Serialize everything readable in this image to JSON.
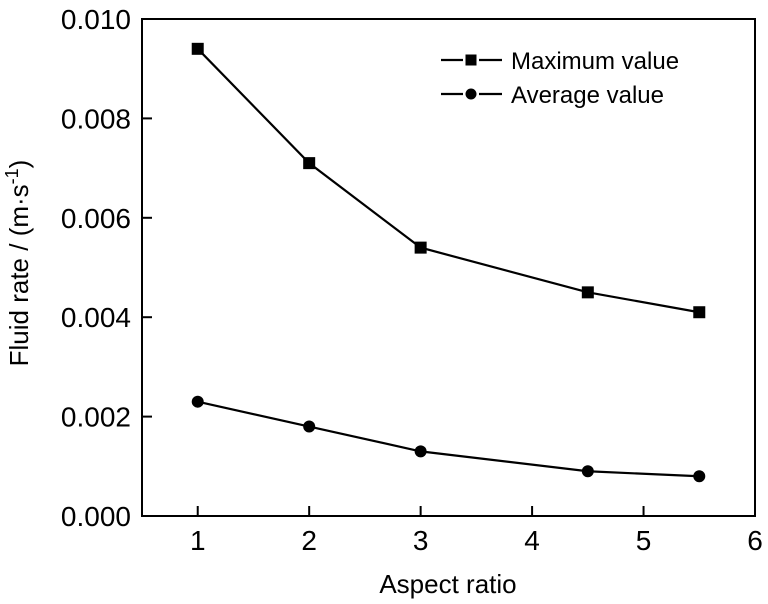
{
  "chart_data": {
    "type": "line",
    "title": "",
    "xlabel": "Aspect ratio",
    "ylabel": "Fluid rate / (m·s⁻¹)",
    "ylabel_parts": {
      "prefix": "Fluid rate / (m·s",
      "superscript": "-1",
      "suffix": ")"
    },
    "xlim": [
      0.5,
      6
    ],
    "ylim": [
      0,
      0.01
    ],
    "x_tick_values": [
      1,
      2,
      3,
      4,
      5,
      6
    ],
    "x_tick_labels": [
      "1",
      "2",
      "3",
      "4",
      "5",
      "6"
    ],
    "y_tick_values": [
      0,
      0.002,
      0.004,
      0.006,
      0.008,
      0.01
    ],
    "y_tick_labels": [
      "0.000",
      "0.002",
      "0.004",
      "0.006",
      "0.008",
      "0.010"
    ],
    "grid": false,
    "legend_position": "inside-top-right",
    "x": [
      1,
      2,
      3,
      4.5,
      5.5
    ],
    "series": [
      {
        "name": "Maximum value",
        "marker": "square",
        "values": [
          0.0094,
          0.0071,
          0.0054,
          0.0045,
          0.0041
        ]
      },
      {
        "name": "Average value",
        "marker": "circle",
        "values": [
          0.0023,
          0.0018,
          0.0013,
          0.0009,
          0.0008
        ]
      }
    ],
    "colors": {
      "foreground": "#000000",
      "background": "#ffffff"
    }
  }
}
